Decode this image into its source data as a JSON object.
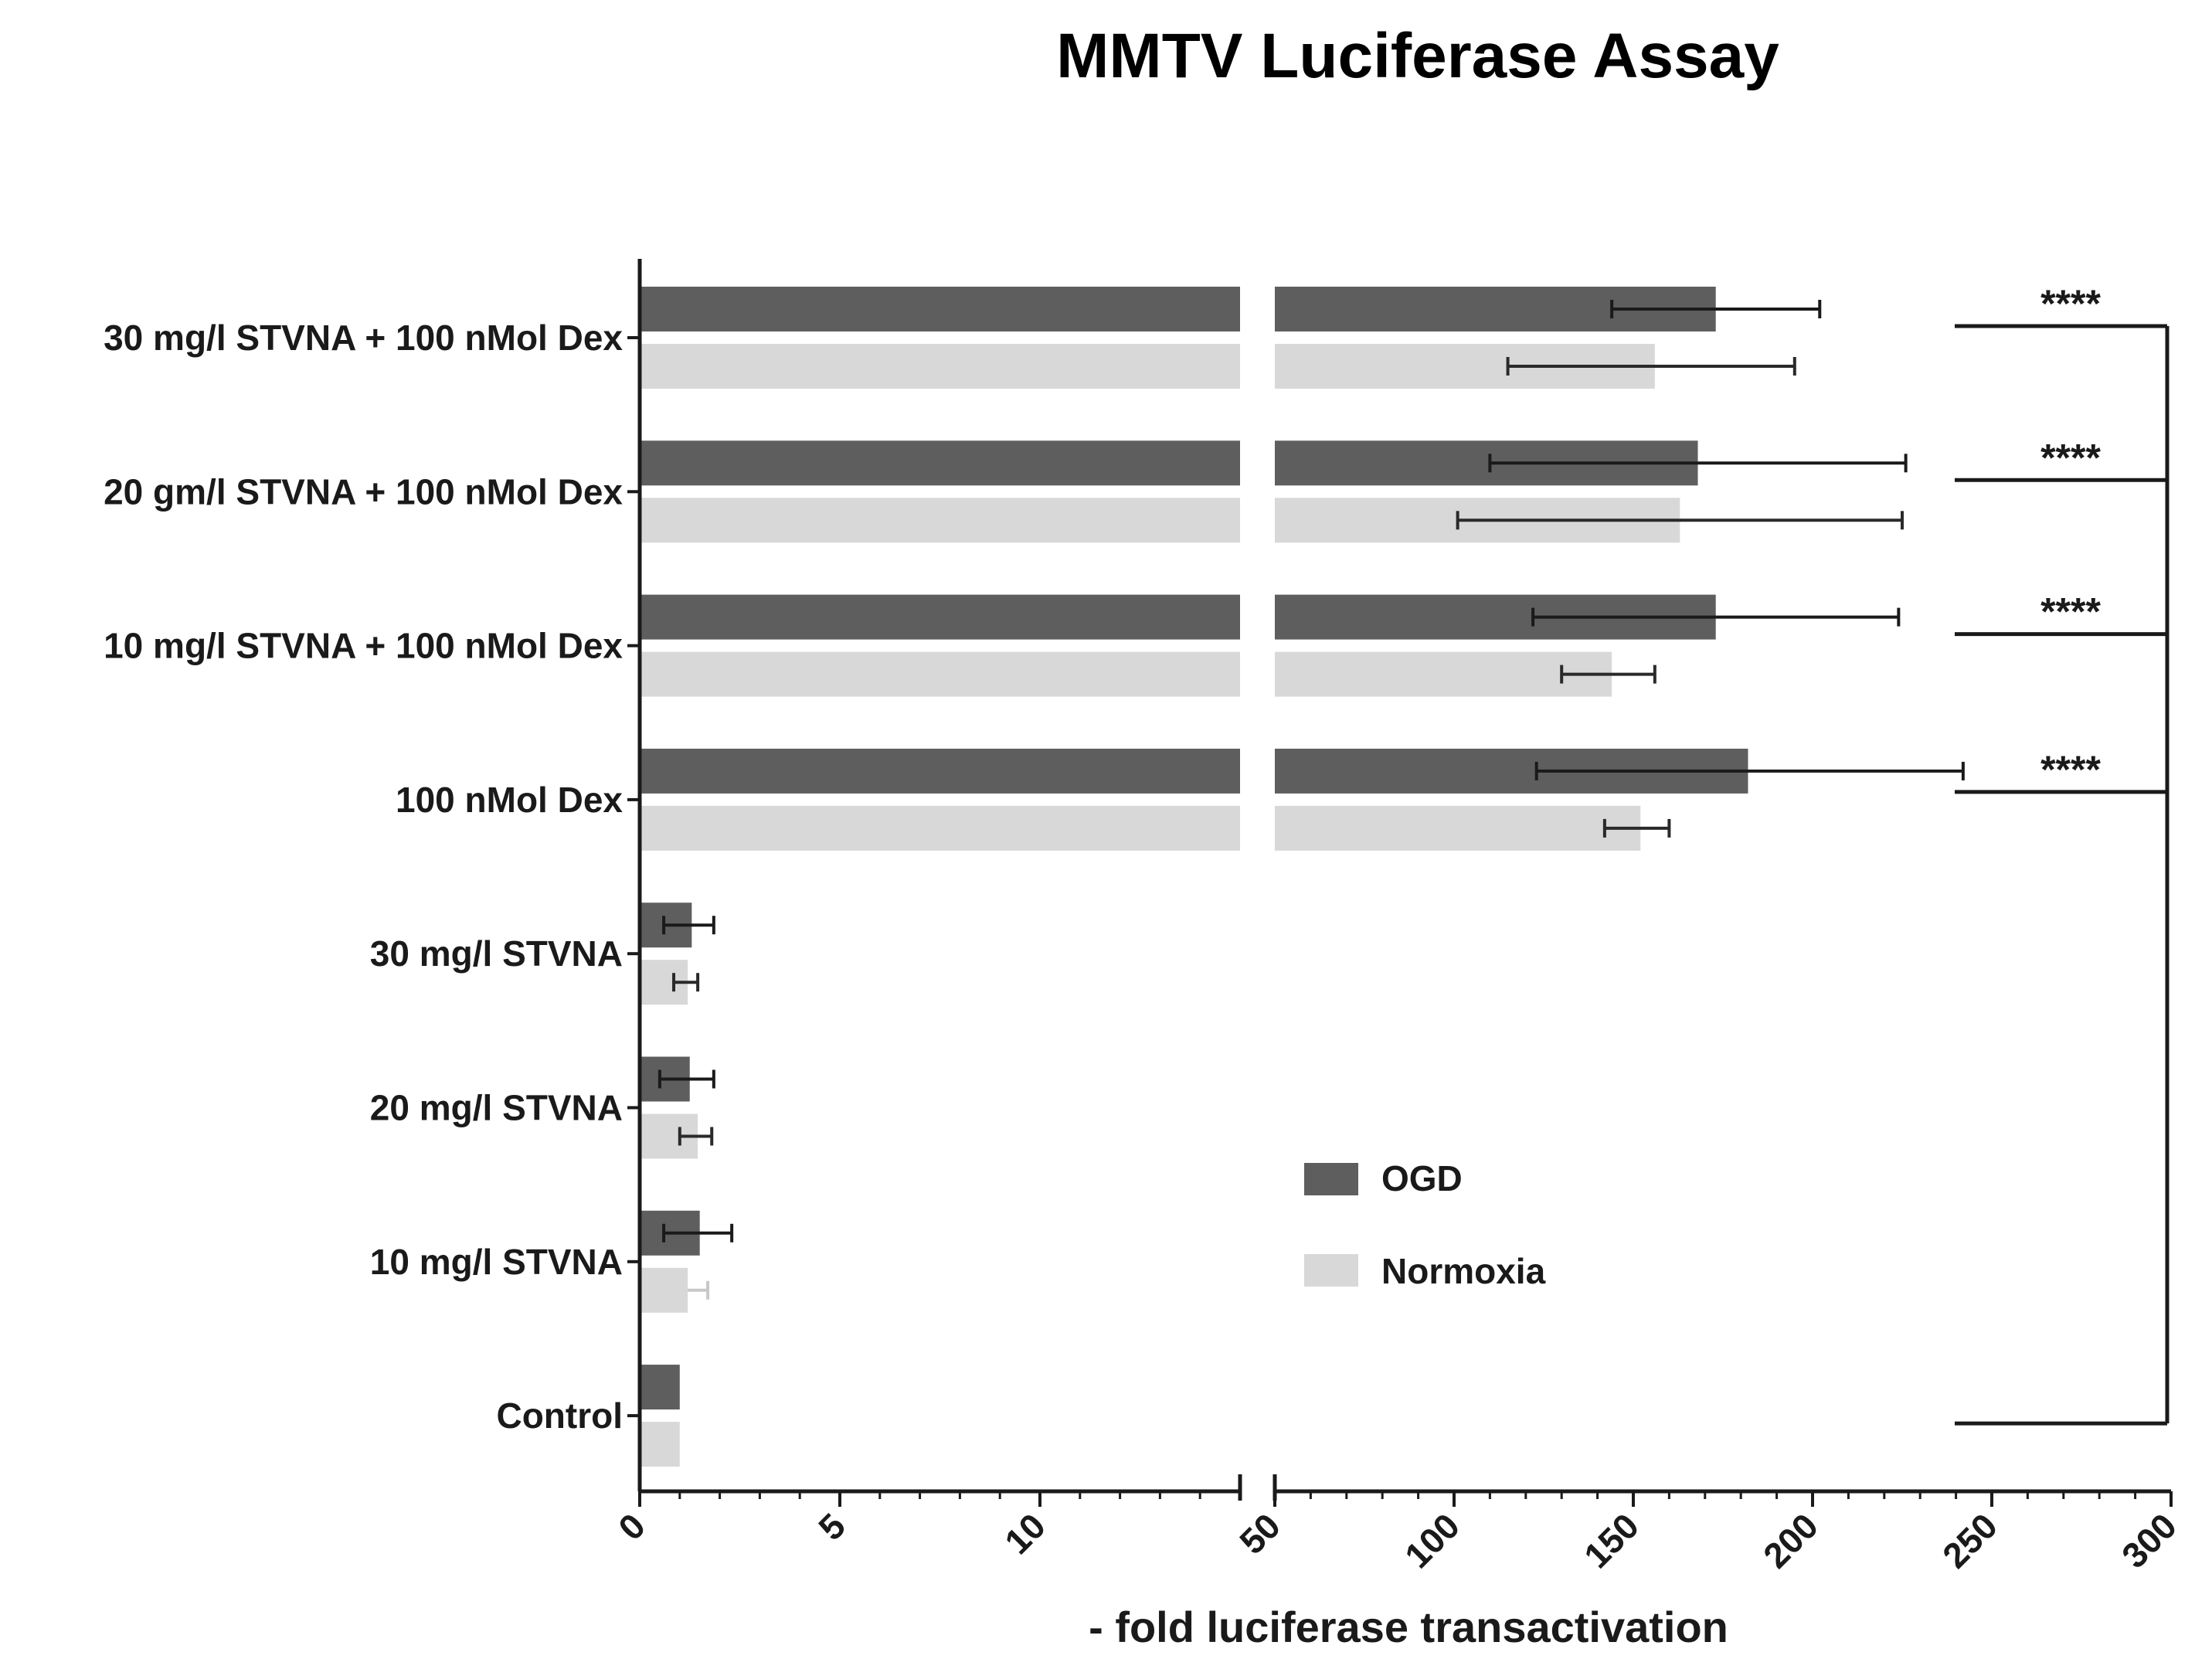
{
  "chart_data": {
    "type": "bar",
    "orientation": "horizontal",
    "title": "MMTV Luciferase Assay",
    "xlabel": "- fold luciferase transactivation",
    "ylabel": "",
    "axis_break": {
      "segment1": [
        0,
        15
      ],
      "segment2": [
        50,
        300
      ]
    },
    "xticks_segment1": [
      "0",
      "5",
      "10"
    ],
    "xticks_segment2": [
      "50",
      "100",
      "150",
      "200",
      "250",
      "300"
    ],
    "categories": [
      "30 mg/l STVNA + 100 nMol Dex",
      "20 gm/l STVNA + 100 nMol Dex",
      "10 mg/l STVNA + 100 nMol Dex",
      "100 nMol Dex",
      "30 mg/l STVNA",
      "20 mg/l STVNA",
      "10 mg/l STVNA",
      "Control"
    ],
    "series": [
      {
        "name": "OGD",
        "color": "#5e5e5e",
        "values": [
          173,
          168,
          173,
          182,
          1.3,
          1.25,
          1.5,
          1.0
        ],
        "error_low": [
          144,
          110,
          122,
          123,
          0.6,
          0.5,
          0.6,
          null
        ],
        "error_high": [
          202,
          226,
          224,
          242,
          1.85,
          1.85,
          2.3,
          null
        ]
      },
      {
        "name": "Normoxia",
        "color": "#d8d8d8",
        "values": [
          156,
          163,
          144,
          152,
          1.2,
          1.45,
          1.2,
          1.0
        ],
        "error_low": [
          115,
          101,
          130,
          142,
          0.85,
          1.0,
          null,
          null
        ],
        "error_high": [
          195,
          225,
          156,
          160,
          1.45,
          1.8,
          1.7,
          null
        ]
      }
    ],
    "significance": {
      "marks": [
        "****",
        "****",
        "****",
        "****"
      ],
      "compared_to": "Control"
    },
    "legend_position": "lower-right-inside",
    "grid": false
  }
}
